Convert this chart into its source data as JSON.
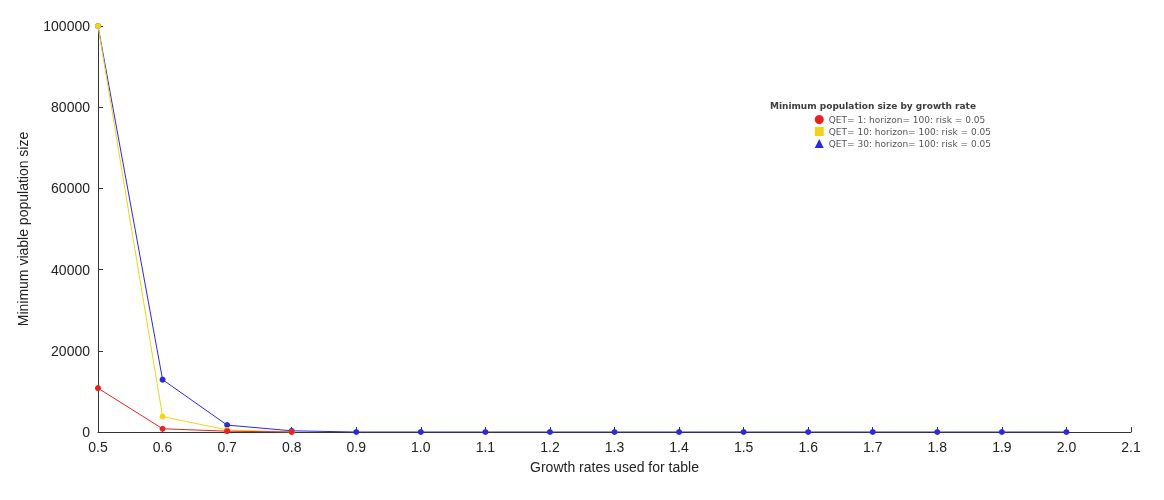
{
  "chart_data": {
    "type": "line",
    "xlabel": "Growth rates used for table",
    "ylabel": "Minimum viable population size",
    "legend_title": "Minimum population size by growth rate",
    "x": [
      0.5,
      0.6,
      0.7,
      0.8,
      0.9,
      1.0,
      1.1,
      1.2,
      1.3,
      1.4,
      1.5,
      1.6,
      1.7,
      1.8,
      1.9,
      2.0
    ],
    "series": [
      {
        "name": "QET= 1: horizon= 100: risk = 0.05",
        "color": "#e8231f",
        "values": [
          10800,
          800,
          200,
          0,
          null,
          null,
          null,
          null,
          null,
          null,
          null,
          null,
          null,
          null,
          null,
          null
        ]
      },
      {
        "name": "QET= 10: horizon= 100: risk = 0.05",
        "color": "#f2d21a",
        "values": [
          100000,
          3800,
          500,
          0,
          null,
          null,
          null,
          null,
          null,
          null,
          null,
          null,
          null,
          null,
          null,
          null
        ]
      },
      {
        "name": "QET= 30: horizon= 100: risk = 0.05",
        "color": "#2a2ae0",
        "values": [
          100000,
          12900,
          1700,
          300,
          0,
          0,
          0,
          0,
          0,
          0,
          0,
          0,
          0,
          0,
          0,
          0
        ]
      }
    ],
    "xlim": [
      0.5,
      2.1
    ],
    "xticks": [
      {
        "value": 0.5,
        "label": "0.5"
      },
      {
        "value": 0.6,
        "label": "0.6"
      },
      {
        "value": 0.7,
        "label": "0.7"
      },
      {
        "value": 0.8,
        "label": "0.8"
      },
      {
        "value": 0.9,
        "label": "0.9"
      },
      {
        "value": 1.0,
        "label": "1.0"
      },
      {
        "value": 1.1,
        "label": "1.1"
      },
      {
        "value": 1.2,
        "label": "1.2"
      },
      {
        "value": 1.3,
        "label": "1.3"
      },
      {
        "value": 1.4,
        "label": "1.4"
      },
      {
        "value": 1.5,
        "label": "1.5"
      },
      {
        "value": 1.6,
        "label": "1.6"
      },
      {
        "value": 1.7,
        "label": "1.7"
      },
      {
        "value": 1.8,
        "label": "1.8"
      },
      {
        "value": 1.9,
        "label": "1.9"
      },
      {
        "value": 2.0,
        "label": "2.0"
      },
      {
        "value": 2.1,
        "label": "2.1"
      }
    ],
    "ylim": [
      0,
      100000
    ],
    "yticks": [
      0,
      20000,
      40000,
      60000,
      80000,
      100000
    ],
    "grid": false,
    "legend": "top right",
    "marker": "circle",
    "line_style": "solid"
  }
}
